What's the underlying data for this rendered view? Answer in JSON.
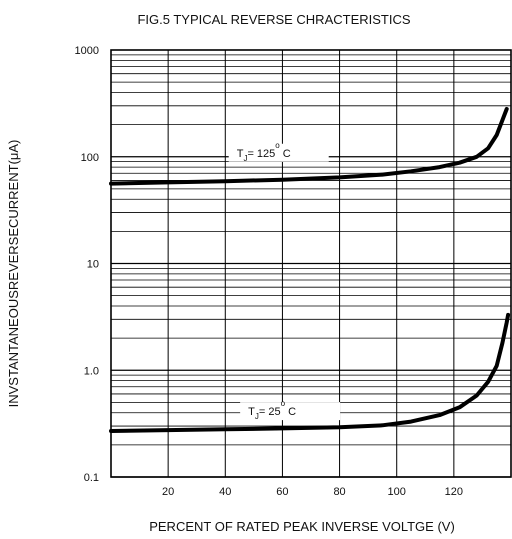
{
  "chart_data": {
    "type": "line",
    "title": "FIG.5 TYPICAL REVERSE CHRACTERISTICS",
    "xlabel": "PERCENT OF RATED PEAK INVERSE VOLTGE  (V)",
    "ylabel": "INVSTANTANEOUSREVERSECURRENT(μA)",
    "xlim": [
      0,
      140
    ],
    "ylim": [
      0.1,
      1000
    ],
    "yscale": "log",
    "grid": true,
    "x_ticks": [
      {
        "value": 20,
        "label": "20"
      },
      {
        "value": 40,
        "label": "40"
      },
      {
        "value": 60,
        "label": "60"
      },
      {
        "value": 80,
        "label": "80"
      },
      {
        "value": 100,
        "label": "100"
      },
      {
        "value": 120,
        "label": "120"
      }
    ],
    "y_ticks": [
      {
        "value": 0.1,
        "label": "0.1"
      },
      {
        "value": 1,
        "label": "1.0"
      },
      {
        "value": 10,
        "label": "10"
      },
      {
        "value": 100,
        "label": "100"
      },
      {
        "value": 1000,
        "label": "1000"
      }
    ],
    "series": [
      {
        "label_main": "T",
        "label_sub": "J",
        "label_rest": "= 125",
        "label_deg": "o",
        "label_unit": "C",
        "label_x": 44,
        "label_y": 100,
        "points": [
          [
            0,
            56
          ],
          [
            20,
            57.5
          ],
          [
            40,
            59
          ],
          [
            60,
            61
          ],
          [
            80,
            64
          ],
          [
            95,
            68
          ],
          [
            105,
            73
          ],
          [
            115,
            80
          ],
          [
            122,
            88
          ],
          [
            128,
            100
          ],
          [
            132,
            120
          ],
          [
            135,
            160
          ],
          [
            137,
            220
          ],
          [
            138.5,
            280
          ]
        ]
      },
      {
        "label_main": "T",
        "label_sub": "J",
        "label_rest": "= 25",
        "label_deg": "o",
        "label_unit": "C",
        "label_x": 48,
        "label_y": 0.38,
        "points": [
          [
            0,
            0.27
          ],
          [
            20,
            0.275
          ],
          [
            40,
            0.28
          ],
          [
            60,
            0.285
          ],
          [
            80,
            0.292
          ],
          [
            95,
            0.305
          ],
          [
            105,
            0.33
          ],
          [
            115,
            0.38
          ],
          [
            122,
            0.45
          ],
          [
            128,
            0.58
          ],
          [
            132,
            0.78
          ],
          [
            135,
            1.1
          ],
          [
            137,
            1.8
          ],
          [
            138.5,
            2.8
          ],
          [
            139,
            3.3
          ]
        ]
      }
    ]
  }
}
